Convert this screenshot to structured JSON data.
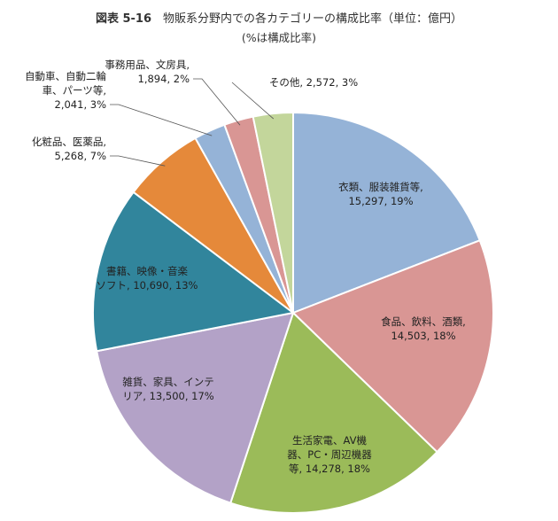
{
  "title": {
    "figure_no": "図表 5-16",
    "text": "物販系分野内での各カテゴリーの構成比率（単位：億円）"
  },
  "subtitle": "(%は構成比率)",
  "chart_data": {
    "type": "pie",
    "title": "物販系分野内での各カテゴリーの構成比率（単位：億円）",
    "subtitle": "(%は構成比率)",
    "unit": "億円",
    "start": "12 o'clock",
    "direction": "clockwise",
    "slices": [
      {
        "name": "衣類、服装雑貨等",
        "value": 15297,
        "percent": 19,
        "color": "#95b3d7",
        "label_lines": [
          "衣類、服装雑貨等,",
          "15,297, 19%"
        ]
      },
      {
        "name": "食品、飲料、酒類",
        "value": 14503,
        "percent": 18,
        "color": "#d99694",
        "label_lines": [
          "食品、飲料、酒類,",
          "14,503, 18%"
        ]
      },
      {
        "name": "生活家電、AV機器、PC・周辺機器等",
        "value": 14278,
        "percent": 18,
        "color": "#9bbb59",
        "label_lines": [
          "生活家電、AV機",
          "器、PC・周辺機器",
          "等, 14,278, 18%"
        ]
      },
      {
        "name": "雑貨、家具、インテリア",
        "value": 13500,
        "percent": 17,
        "color": "#b3a2c7",
        "label_lines": [
          "雑貨、家具、インテ",
          "リア, 13,500, 17%"
        ]
      },
      {
        "name": "書籍、映像・音楽ソフト",
        "value": 10690,
        "percent": 13,
        "color": "#31859c",
        "label_lines": [
          "書籍、映像・音楽",
          "ソフト, 10,690, 13%"
        ]
      },
      {
        "name": "化粧品、医薬品",
        "value": 5268,
        "percent": 7,
        "color": "#e5893a",
        "label_lines": [
          "化粧品、医薬品,",
          "5,268, 7%"
        ]
      },
      {
        "name": "自動車、自動二輪車、パーツ等",
        "value": 2041,
        "percent": 3,
        "color": "#95b3d7",
        "label_lines": [
          "自動車、自動二輪",
          "車、パーツ等,",
          "2,041, 3%"
        ]
      },
      {
        "name": "事務用品、文房具",
        "value": 1894,
        "percent": 2,
        "color": "#d99694",
        "label_lines": [
          "事務用品、文房具,",
          "1,894, 2%"
        ]
      },
      {
        "name": "その他",
        "value": 2572,
        "percent": 3,
        "color": "#c3d69b",
        "label_lines": [
          "その他, 2,572, 3%"
        ]
      }
    ]
  }
}
